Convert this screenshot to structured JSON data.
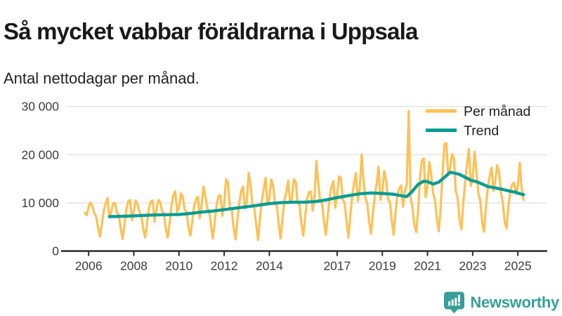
{
  "title": "Så mycket vabbar föräldrarna i Uppsala",
  "subtitle": "Antal nettodagar per månad.",
  "footer": {
    "brand": "Newsworthy",
    "logo_icon": "bar-chart-speech-bubble-icon"
  },
  "colors": {
    "per_month": "#FDC155",
    "trend": "#089C92",
    "grid": "#E2E2E2",
    "axis": "#2B2B2B",
    "text": "#3C3C3C",
    "brand_teal": "#379F97"
  },
  "chart_data": {
    "type": "line",
    "title": "Så mycket vabbar föräldrarna i Uppsala",
    "subtitle": "Antal nettodagar per månad.",
    "xlabel": "",
    "ylabel": "",
    "xlim": [
      2005.0,
      2026.3
    ],
    "ylim": [
      0,
      30000
    ],
    "grid": "horizontal",
    "legend_position": "top-right",
    "x_ticks": [
      2006,
      2008,
      2010,
      2012,
      2014,
      2017,
      2019,
      2021,
      2023,
      2025
    ],
    "x_tick_labels": [
      "2006",
      "2008",
      "2010",
      "2012",
      "2014",
      "2017",
      "2019",
      "2021",
      "2023",
      "2025"
    ],
    "y_ticks": [
      0,
      10000,
      20000,
      30000
    ],
    "y_tick_labels": [
      "0",
      "10 000",
      "20 000",
      "30 000"
    ],
    "series": [
      {
        "name": "Per månad",
        "color": "#FDC155",
        "width": 3.2,
        "start_year": 2005,
        "start_month": 11,
        "values": [
          7900,
          7400,
          9300,
          10100,
          9300,
          7800,
          7200,
          4800,
          3000,
          5500,
          8300,
          9800,
          11000,
          7200,
          8100,
          9900,
          10000,
          7900,
          7600,
          4800,
          2500,
          5400,
          8600,
          10300,
          10600,
          6400,
          8300,
          10500,
          9700,
          8100,
          7400,
          4500,
          2800,
          5600,
          8800,
          10300,
          10500,
          6100,
          8500,
          10600,
          10200,
          8200,
          7800,
          4600,
          2800,
          5800,
          9400,
          11600,
          12400,
          8100,
          9000,
          12000,
          11300,
          8600,
          8200,
          5000,
          3200,
          6000,
          9200,
          10700,
          11300,
          6800,
          9400,
          13400,
          11400,
          8800,
          8400,
          5200,
          2600,
          6200,
          9600,
          11400,
          11600,
          7300,
          9800,
          14900,
          14200,
          9200,
          8800,
          5000,
          2400,
          6400,
          10000,
          12400,
          13400,
          8800,
          10400,
          16200,
          13800,
          9600,
          9000,
          5400,
          2300,
          6600,
          10400,
          12800,
          15200,
          9600,
          10800,
          14900,
          13600,
          9800,
          9400,
          5600,
          2600,
          6800,
          10600,
          12300,
          14600,
          10000,
          11000,
          14900,
          14400,
          10000,
          9600,
          5800,
          3200,
          7000,
          10800,
          12200,
          12400,
          8400,
          11400,
          18700,
          14000,
          10200,
          9800,
          6000,
          3400,
          7200,
          11000,
          13400,
          14500,
          9000,
          11800,
          15500,
          15200,
          10600,
          10000,
          6200,
          2800,
          7400,
          11400,
          14200,
          16200,
          10400,
          13000,
          20000,
          14800,
          11000,
          9800,
          6000,
          3600,
          7800,
          11600,
          14000,
          17500,
          10600,
          12200,
          16600,
          14600,
          10800,
          10200,
          6400,
          3400,
          8000,
          11800,
          13000,
          13600,
          9200,
          12400,
          14000,
          29100,
          11300,
          9000,
          5400,
          3900,
          8400,
          15000,
          18800,
          19200,
          11200,
          13500,
          18500,
          15700,
          12000,
          10500,
          6500,
          4100,
          9000,
          16300,
          22200,
          22400,
          15700,
          17100,
          20100,
          19400,
          12500,
          11000,
          6500,
          4500,
          10000,
          14500,
          18000,
          21200,
          13500,
          15000,
          20600,
          16500,
          12000,
          10500,
          6000,
          4000,
          9000,
          13000,
          15500,
          17300,
          12500,
          14500,
          17800,
          16600,
          12000,
          10000,
          6000,
          4700,
          9500,
          12500,
          13900,
          14200,
          11800,
          13700,
          18300,
          12800,
          10600
        ]
      },
      {
        "name": "Trend",
        "color": "#089C92",
        "width": 4.4,
        "points": [
          [
            2006.92,
            7150
          ],
          [
            2007.5,
            7200
          ],
          [
            2008.0,
            7300
          ],
          [
            2008.5,
            7400
          ],
          [
            2009.0,
            7500
          ],
          [
            2009.5,
            7550
          ],
          [
            2010.0,
            7600
          ],
          [
            2010.5,
            7800
          ],
          [
            2011.0,
            8100
          ],
          [
            2011.5,
            8300
          ],
          [
            2012.0,
            8600
          ],
          [
            2012.5,
            8900
          ],
          [
            2013.0,
            9200
          ],
          [
            2013.5,
            9500
          ],
          [
            2014.0,
            9850
          ],
          [
            2014.5,
            10050
          ],
          [
            2015.0,
            10150
          ],
          [
            2015.5,
            10150
          ],
          [
            2016.0,
            10250
          ],
          [
            2016.5,
            10600
          ],
          [
            2017.0,
            11100
          ],
          [
            2017.5,
            11500
          ],
          [
            2018.0,
            11900
          ],
          [
            2018.5,
            12050
          ],
          [
            2019.0,
            11950
          ],
          [
            2019.5,
            11800
          ],
          [
            2019.83,
            11500
          ],
          [
            2020.08,
            11300
          ],
          [
            2020.33,
            12400
          ],
          [
            2020.58,
            13800
          ],
          [
            2020.83,
            14500
          ],
          [
            2021.0,
            14400
          ],
          [
            2021.25,
            13900
          ],
          [
            2021.5,
            14300
          ],
          [
            2021.75,
            15300
          ],
          [
            2022.0,
            16350
          ],
          [
            2022.17,
            16200
          ],
          [
            2022.42,
            15900
          ],
          [
            2022.67,
            15300
          ],
          [
            2022.92,
            14700
          ],
          [
            2023.17,
            14400
          ],
          [
            2023.42,
            13900
          ],
          [
            2023.67,
            13400
          ],
          [
            2024.0,
            13100
          ],
          [
            2024.33,
            12800
          ],
          [
            2024.67,
            12400
          ],
          [
            2024.92,
            12200
          ],
          [
            2025.08,
            11900
          ],
          [
            2025.25,
            11700
          ]
        ]
      }
    ]
  }
}
